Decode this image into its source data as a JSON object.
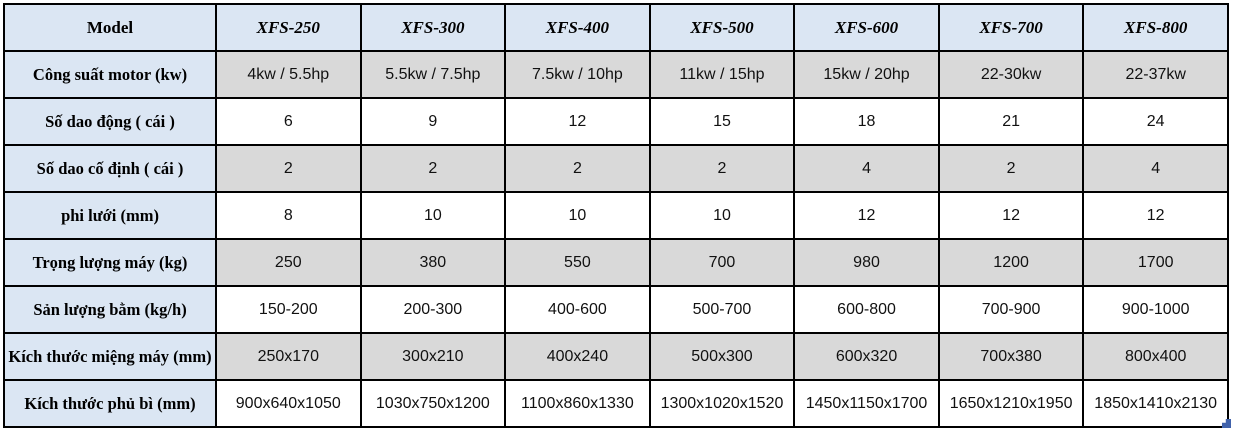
{
  "table": {
    "header": {
      "model_label": "Model",
      "columns": [
        "XFS-250",
        "XFS-300",
        "XFS-400",
        "XFS-500",
        "XFS-600",
        "XFS-700",
        "XFS-800"
      ]
    },
    "rows": [
      {
        "label": "Công suất motor (kw)",
        "values": [
          "4kw / 5.5hp",
          "5.5kw / 7.5hp",
          "7.5kw / 10hp",
          "11kw / 15hp",
          "15kw / 20hp",
          "22-30kw",
          "22-37kw"
        ]
      },
      {
        "label": "Số dao động ( cái )",
        "values": [
          "6",
          "9",
          "12",
          "15",
          "18",
          "21",
          "24"
        ]
      },
      {
        "label": "Số dao cố định ( cái )",
        "values": [
          "2",
          "2",
          "2",
          "2",
          "4",
          "2",
          "4"
        ]
      },
      {
        "label": "phi lưới (mm)",
        "values": [
          "8",
          "10",
          "10",
          "10",
          "12",
          "12",
          "12"
        ]
      },
      {
        "label": "Trọng lượng máy (kg)",
        "values": [
          "250",
          "380",
          "550",
          "700",
          "980",
          "1200",
          "1700"
        ]
      },
      {
        "label": "Sản lượng bằm (kg/h)",
        "values": [
          "150-200",
          "200-300",
          "400-600",
          "500-700",
          "600-800",
          "700-900",
          "900-1000"
        ]
      },
      {
        "label": "Kích thước miệng máy (mm)",
        "values": [
          "250x170",
          "300x210",
          "400x240",
          "500x300",
          "600x320",
          "700x380",
          "800x400"
        ]
      },
      {
        "label": "Kích thước phủ bì (mm)",
        "values": [
          "900x640x1050",
          "1030x750x1200",
          "1100x860x1330",
          "1300x1020x1520",
          "1450x1150x1700",
          "1650x1210x1950",
          "1850x1410x2130"
        ]
      }
    ]
  },
  "colors": {
    "header_bg": "#dbe6f3",
    "label_column_bg": "#dbe6f3",
    "alt_row_bg": "#d9d9d9",
    "row_bg": "#ffffff",
    "border": "#000000",
    "resize_handle": "#4062ab"
  }
}
